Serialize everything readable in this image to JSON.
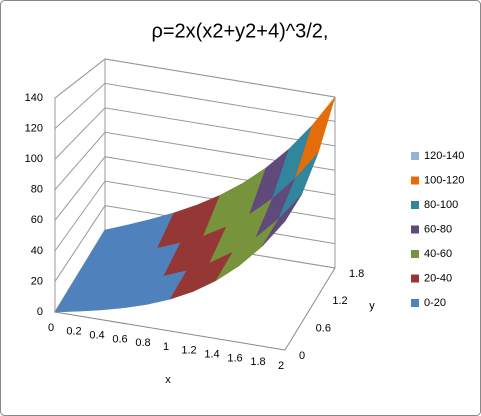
{
  "chart_data": {
    "type": "surface",
    "title": "ρ=2x(x2+y2+4)^3/2,",
    "x_label": "x",
    "y_label": "y",
    "categories": [
      0,
      0.2,
      0.4,
      0.6,
      0.8,
      1,
      1.2,
      1.4,
      1.6,
      1.8,
      2
    ],
    "series": [
      {
        "name": "0",
        "values": [
          0,
          3.0,
          6.3,
          10.2,
          14.9,
          20.8,
          28.3,
          37.9,
          50.0,
          65.2,
          84.2
        ]
      },
      {
        "name": "0.6",
        "values": [
          0,
          3.4,
          7.2,
          11.4,
          16.6,
          23.1,
          31.2,
          41.4,
          54.2,
          70.1,
          89.9
        ]
      },
      {
        "name": "1.2",
        "values": [
          0,
          4.8,
          9.9,
          15.6,
          22.3,
          30.4,
          40.3,
          52.4,
          67.3,
          85.6,
          107.9
        ]
      },
      {
        "name": "1.8",
        "values": [
          0,
          7.3,
          15.0,
          23.4,
          32.9,
          44.0,
          57.1,
          72.7,
          91.3,
          113.6,
          140
        ]
      }
    ],
    "zlim": [
      0,
      140
    ],
    "zticks": [
      0,
      20,
      40,
      60,
      80,
      100,
      120,
      140
    ],
    "bands": [
      {
        "label": "120-140",
        "min": 120,
        "max": 140,
        "color": "#95b3d7"
      },
      {
        "label": "100-120",
        "min": 100,
        "max": 120,
        "color": "#e46c0a"
      },
      {
        "label": "80-100",
        "min": 80,
        "max": 100,
        "color": "#31859c"
      },
      {
        "label": "60-80",
        "min": 60,
        "max": 80,
        "color": "#604a7b"
      },
      {
        "label": "40-60",
        "min": 40,
        "max": 60,
        "color": "#77933c"
      },
      {
        "label": "20-40",
        "min": 20,
        "max": 40,
        "color": "#953735"
      },
      {
        "label": "0-20",
        "min": 0,
        "max": 20,
        "color": "#4f81bd"
      }
    ]
  }
}
